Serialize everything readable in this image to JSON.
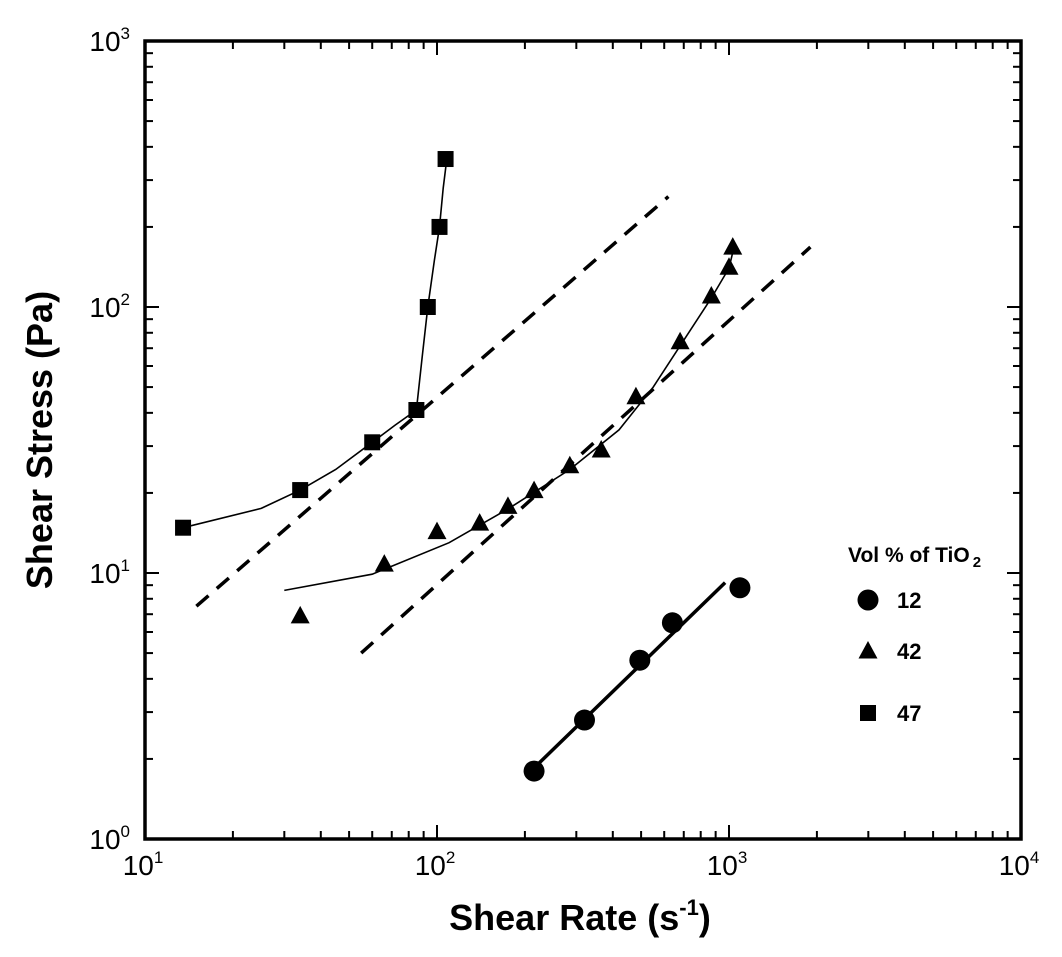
{
  "chart_data": {
    "type": "scatter",
    "x_scale": "log",
    "y_scale": "log",
    "xlim": [
      10,
      10000
    ],
    "ylim": [
      1,
      1000
    ],
    "xlabel": {
      "main": "Shear Rate (s",
      "sup": "-1",
      "tail": ")"
    },
    "ylabel": "Shear Stress (Pa)",
    "x_ticks": [
      {
        "base": "10",
        "exp": "1",
        "value": 10
      },
      {
        "base": "10",
        "exp": "2",
        "value": 100
      },
      {
        "base": "10",
        "exp": "3",
        "value": 1000
      },
      {
        "base": "10",
        "exp": "4",
        "value": 10000
      }
    ],
    "y_ticks": [
      {
        "base": "10",
        "exp": "0",
        "value": 1
      },
      {
        "base": "10",
        "exp": "1",
        "value": 10
      },
      {
        "base": "10",
        "exp": "2",
        "value": 100
      },
      {
        "base": "10",
        "exp": "3",
        "value": 1000
      }
    ],
    "legend": {
      "title_main": "Vol % of TiO",
      "title_sub": "2",
      "position": "right"
    },
    "series": [
      {
        "name": "12",
        "marker": "circle",
        "points": [
          [
            215,
            1.8
          ],
          [
            320,
            2.8
          ],
          [
            495,
            4.7
          ],
          [
            640,
            6.5
          ],
          [
            1090,
            8.8
          ]
        ],
        "fit_style": "thick",
        "fit": [
          [
            215,
            1.85
          ],
          [
            970,
            9.2
          ]
        ]
      },
      {
        "name": "42",
        "marker": "triangle",
        "points": [
          [
            34,
            6.9
          ],
          [
            66,
            10.8
          ],
          [
            100,
            14.3
          ],
          [
            140,
            15.4
          ],
          [
            175,
            17.8
          ],
          [
            215,
            20.4
          ],
          [
            285,
            25.3
          ],
          [
            365,
            29
          ],
          [
            480,
            46
          ],
          [
            680,
            74
          ],
          [
            870,
            110
          ],
          [
            1000,
            141
          ],
          [
            1030,
            168
          ]
        ],
        "fit_style": "thin",
        "fit": [
          [
            30,
            8.6
          ],
          [
            60,
            9.9
          ],
          [
            110,
            13
          ],
          [
            175,
            17.4
          ],
          [
            285,
            24.5
          ],
          [
            420,
            34.5
          ],
          [
            550,
            50
          ],
          [
            700,
            75
          ],
          [
            870,
            108
          ],
          [
            1000,
            140
          ],
          [
            1040,
            168
          ]
        ]
      },
      {
        "name": "47",
        "marker": "square",
        "points": [
          [
            13.5,
            14.8
          ],
          [
            34,
            20.5
          ],
          [
            60,
            31
          ],
          [
            85,
            41
          ],
          [
            93,
            100
          ],
          [
            102,
            200
          ],
          [
            107,
            360
          ]
        ],
        "fit_style": "thin",
        "fit": [
          [
            13.5,
            14.8
          ],
          [
            25,
            17.5
          ],
          [
            34,
            20.5
          ],
          [
            45,
            24.5
          ],
          [
            60,
            31
          ],
          [
            72,
            36
          ],
          [
            85,
            41
          ],
          [
            89,
            65
          ],
          [
            93,
            100
          ],
          [
            98,
            150
          ],
          [
            102,
            200
          ],
          [
            105,
            280
          ],
          [
            108,
            360
          ]
        ]
      }
    ],
    "reference_lines": [
      {
        "style": "dashed",
        "points": [
          [
            15,
            7.5
          ],
          [
            620,
            260
          ]
        ]
      },
      {
        "style": "dashed",
        "points": [
          [
            55,
            5
          ],
          [
            1900,
            168
          ]
        ]
      }
    ]
  }
}
